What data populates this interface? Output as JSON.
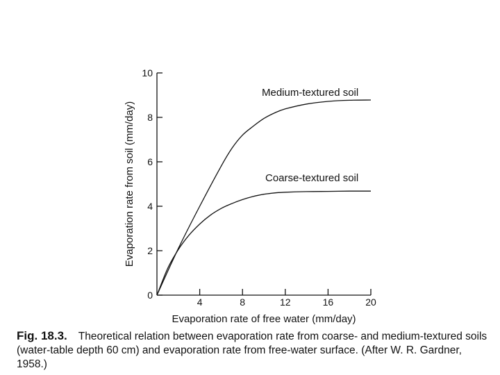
{
  "chart_data": {
    "type": "line",
    "xlabel": "Evaporation rate of free water (mm/day)",
    "ylabel": "Evaporation rate from soil (mm/day)",
    "xlim": [
      0,
      20
    ],
    "ylim": [
      0,
      10
    ],
    "x_ticks": [
      4,
      8,
      12,
      16,
      20
    ],
    "y_ticks": [
      0,
      2,
      4,
      6,
      8,
      10
    ],
    "grid": false,
    "series": [
      {
        "name": "Medium-textured soil",
        "x": [
          0,
          2,
          4,
          6,
          7,
          8,
          9,
          10,
          11,
          12,
          14,
          16,
          18,
          20
        ],
        "y": [
          0,
          2.1,
          4.0,
          5.8,
          6.6,
          7.2,
          7.6,
          7.95,
          8.2,
          8.38,
          8.6,
          8.72,
          8.77,
          8.78
        ]
      },
      {
        "name": "Coarse-textured soil",
        "x": [
          0,
          1,
          2,
          3,
          4,
          5,
          6,
          7,
          8,
          9,
          10,
          11,
          12,
          14,
          16,
          18,
          20
        ],
        "y": [
          0,
          1.2,
          2.05,
          2.7,
          3.2,
          3.6,
          3.9,
          4.12,
          4.3,
          4.44,
          4.54,
          4.6,
          4.63,
          4.66,
          4.67,
          4.68,
          4.68
        ]
      }
    ]
  },
  "caption": {
    "figure_number": "Fig. 18.3.",
    "text": "Theoretical relation between evaporation rate from coarse- and medium-textured soils (water-table depth 60 cm) and evaporation rate from free-water surface. (After W. R. Gardner, 1958.)"
  }
}
